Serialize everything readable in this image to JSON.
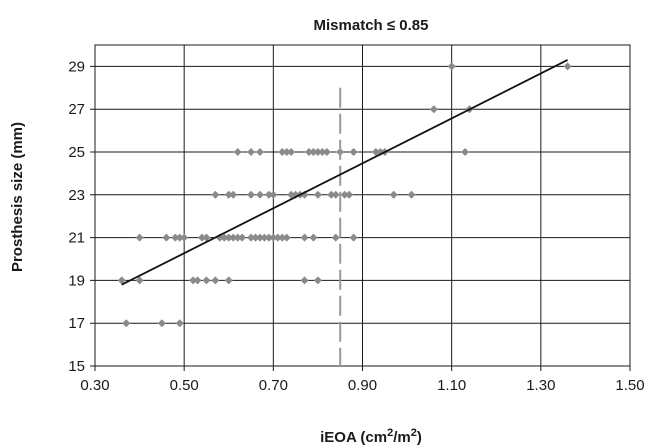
{
  "chart_data": {
    "type": "scatter",
    "title": "Mismatch ≤ 0.85",
    "xlabel": {
      "main": "iEOA (cm",
      "sup1": "2",
      "mid": "/m",
      "sup2": "2",
      "end": ")"
    },
    "ylabel": "Prosthesis size (mm)",
    "xlim": [
      0.3,
      1.5
    ],
    "ylim": [
      15,
      30
    ],
    "x_ticks": [
      0.3,
      0.5,
      0.7,
      0.9,
      1.1,
      1.3,
      1.5
    ],
    "x_tick_labels": [
      "0.30",
      "0.50",
      "0.70",
      "0.90",
      "1.10",
      "1.30",
      "1.50"
    ],
    "y_ticks": [
      15,
      17,
      19,
      21,
      23,
      25,
      27,
      29
    ],
    "y_tick_labels": [
      "15",
      "17",
      "19",
      "21",
      "23",
      "25",
      "27",
      "29"
    ],
    "grid": true,
    "colors": {
      "points": "#8a8a8a",
      "trendline": "#111111",
      "cutoff": "#999999",
      "grid": "#1a1a1a"
    },
    "cutoff_line": {
      "x": 0.85,
      "y_range": [
        15,
        28
      ],
      "style": "dashed"
    },
    "trendline": {
      "x": [
        0.36,
        1.36
      ],
      "y": [
        18.8,
        29.3
      ]
    },
    "points": [
      {
        "x": 0.37,
        "y": 17
      },
      {
        "x": 0.45,
        "y": 17
      },
      {
        "x": 0.49,
        "y": 17
      },
      {
        "x": 0.36,
        "y": 19
      },
      {
        "x": 0.4,
        "y": 19
      },
      {
        "x": 0.52,
        "y": 19
      },
      {
        "x": 0.53,
        "y": 19
      },
      {
        "x": 0.55,
        "y": 19
      },
      {
        "x": 0.57,
        "y": 19
      },
      {
        "x": 0.6,
        "y": 19
      },
      {
        "x": 0.77,
        "y": 19
      },
      {
        "x": 0.8,
        "y": 19
      },
      {
        "x": 0.4,
        "y": 21
      },
      {
        "x": 0.46,
        "y": 21
      },
      {
        "x": 0.48,
        "y": 21
      },
      {
        "x": 0.49,
        "y": 21
      },
      {
        "x": 0.5,
        "y": 21
      },
      {
        "x": 0.54,
        "y": 21
      },
      {
        "x": 0.55,
        "y": 21
      },
      {
        "x": 0.58,
        "y": 21
      },
      {
        "x": 0.59,
        "y": 21
      },
      {
        "x": 0.6,
        "y": 21
      },
      {
        "x": 0.61,
        "y": 21
      },
      {
        "x": 0.62,
        "y": 21
      },
      {
        "x": 0.63,
        "y": 21
      },
      {
        "x": 0.65,
        "y": 21
      },
      {
        "x": 0.66,
        "y": 21
      },
      {
        "x": 0.67,
        "y": 21
      },
      {
        "x": 0.68,
        "y": 21
      },
      {
        "x": 0.69,
        "y": 21
      },
      {
        "x": 0.7,
        "y": 21
      },
      {
        "x": 0.71,
        "y": 21
      },
      {
        "x": 0.72,
        "y": 21
      },
      {
        "x": 0.73,
        "y": 21
      },
      {
        "x": 0.77,
        "y": 21
      },
      {
        "x": 0.79,
        "y": 21
      },
      {
        "x": 0.84,
        "y": 21
      },
      {
        "x": 0.88,
        "y": 21
      },
      {
        "x": 0.57,
        "y": 23
      },
      {
        "x": 0.6,
        "y": 23
      },
      {
        "x": 0.61,
        "y": 23
      },
      {
        "x": 0.65,
        "y": 23
      },
      {
        "x": 0.67,
        "y": 23
      },
      {
        "x": 0.69,
        "y": 23
      },
      {
        "x": 0.7,
        "y": 23
      },
      {
        "x": 0.74,
        "y": 23
      },
      {
        "x": 0.75,
        "y": 23
      },
      {
        "x": 0.76,
        "y": 23
      },
      {
        "x": 0.77,
        "y": 23
      },
      {
        "x": 0.8,
        "y": 23
      },
      {
        "x": 0.83,
        "y": 23
      },
      {
        "x": 0.84,
        "y": 23
      },
      {
        "x": 0.86,
        "y": 23
      },
      {
        "x": 0.87,
        "y": 23
      },
      {
        "x": 0.97,
        "y": 23
      },
      {
        "x": 1.01,
        "y": 23
      },
      {
        "x": 0.62,
        "y": 25
      },
      {
        "x": 0.65,
        "y": 25
      },
      {
        "x": 0.67,
        "y": 25
      },
      {
        "x": 0.72,
        "y": 25
      },
      {
        "x": 0.73,
        "y": 25
      },
      {
        "x": 0.74,
        "y": 25
      },
      {
        "x": 0.78,
        "y": 25
      },
      {
        "x": 0.79,
        "y": 25
      },
      {
        "x": 0.8,
        "y": 25
      },
      {
        "x": 0.81,
        "y": 25
      },
      {
        "x": 0.82,
        "y": 25
      },
      {
        "x": 0.85,
        "y": 25
      },
      {
        "x": 0.88,
        "y": 25
      },
      {
        "x": 0.93,
        "y": 25
      },
      {
        "x": 0.94,
        "y": 25
      },
      {
        "x": 0.95,
        "y": 25
      },
      {
        "x": 1.13,
        "y": 25
      },
      {
        "x": 1.06,
        "y": 27
      },
      {
        "x": 1.14,
        "y": 27
      },
      {
        "x": 1.1,
        "y": 29
      },
      {
        "x": 1.36,
        "y": 29
      }
    ]
  }
}
